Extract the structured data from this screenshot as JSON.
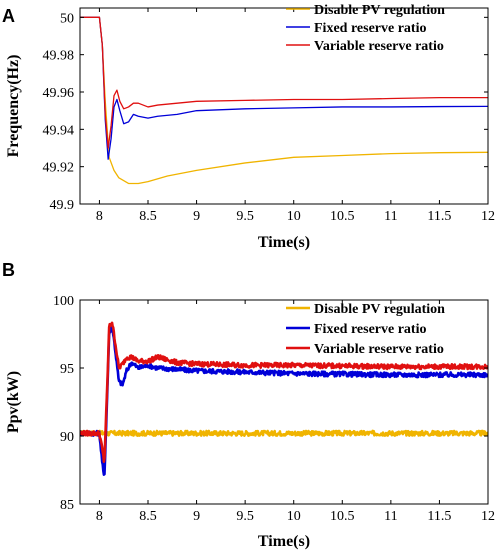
{
  "colors": {
    "disable": "#f0b400",
    "fixed": "#0000d8",
    "variable": "#e01010"
  },
  "chart_data": [
    {
      "panel": "A",
      "type": "line",
      "xlabel": "Time(s)",
      "ylabel": "Frequency(Hz)",
      "xlim": [
        7.8,
        12
      ],
      "ylim": [
        49.9,
        50.005
      ],
      "xticks": [
        "8",
        "8.5",
        "9",
        "9.5",
        "10",
        "10.5",
        "11",
        "11.5",
        "12"
      ],
      "yticks": [
        "49.9",
        "49.92",
        "49.94",
        "49.96",
        "49.98",
        "50"
      ],
      "legend": "top-right",
      "series": [
        {
          "name": "Disable PV regulation",
          "color": "#f0b400",
          "x": [
            7.8,
            8.0,
            8.03,
            8.06,
            8.1,
            8.15,
            8.2,
            8.3,
            8.4,
            8.5,
            8.7,
            9.0,
            9.5,
            10.0,
            10.5,
            11.0,
            11.5,
            12.0
          ],
          "y": [
            50.0,
            50.0,
            49.985,
            49.955,
            49.925,
            49.918,
            49.914,
            49.911,
            49.911,
            49.912,
            49.915,
            49.918,
            49.922,
            49.925,
            49.926,
            49.927,
            49.9275,
            49.9277
          ]
        },
        {
          "name": "Fixed reserve ratio",
          "color": "#0000d8",
          "x": [
            7.8,
            8.0,
            8.03,
            8.06,
            8.09,
            8.12,
            8.15,
            8.18,
            8.21,
            8.25,
            8.3,
            8.35,
            8.4,
            8.5,
            8.6,
            8.8,
            9.0,
            9.5,
            10.0,
            10.5,
            11.0,
            11.5,
            12.0
          ],
          "y": [
            50.0,
            50.0,
            49.985,
            49.945,
            49.924,
            49.935,
            49.952,
            49.956,
            49.95,
            49.943,
            49.944,
            49.948,
            49.947,
            49.946,
            49.947,
            49.948,
            49.95,
            49.951,
            49.9515,
            49.952,
            49.952,
            49.9522,
            49.9523
          ]
        },
        {
          "name": "Variable reserve ratio",
          "color": "#e01010",
          "x": [
            7.8,
            8.0,
            8.03,
            8.06,
            8.09,
            8.12,
            8.15,
            8.18,
            8.21,
            8.25,
            8.3,
            8.35,
            8.4,
            8.5,
            8.6,
            8.8,
            9.0,
            9.5,
            10.0,
            10.5,
            11.0,
            11.5,
            12.0
          ],
          "y": [
            50.0,
            50.0,
            49.985,
            49.948,
            49.93,
            49.942,
            49.958,
            49.961,
            49.955,
            49.951,
            49.952,
            49.954,
            49.954,
            49.952,
            49.953,
            49.954,
            49.955,
            49.9555,
            49.956,
            49.956,
            49.9565,
            49.957,
            49.957
          ]
        }
      ]
    },
    {
      "panel": "B",
      "type": "line",
      "xlabel": "Time(s)",
      "ylabel": "Ppv(kW)",
      "xlim": [
        7.8,
        12
      ],
      "ylim": [
        85,
        100
      ],
      "xticks": [
        "8",
        "8.5",
        "9",
        "9.5",
        "10",
        "10.5",
        "11",
        "11.5",
        "12"
      ],
      "yticks": [
        "85",
        "90",
        "95",
        "100"
      ],
      "legend": "top-right",
      "series": [
        {
          "name": "Disable PV regulation",
          "color": "#f0b400",
          "x": [
            7.8,
            12.0
          ],
          "y": [
            90.2,
            90.2
          ]
        },
        {
          "name": "Fixed reserve ratio",
          "color": "#0000d8",
          "x": [
            7.8,
            8.0,
            8.03,
            8.05,
            8.08,
            8.1,
            8.13,
            8.16,
            8.2,
            8.24,
            8.28,
            8.33,
            8.4,
            8.5,
            8.6,
            8.8,
            9.0,
            9.5,
            10.0,
            11.0,
            12.0
          ],
          "y": [
            90.2,
            90.2,
            88.0,
            86.8,
            93.0,
            97.5,
            98.2,
            96.5,
            94.0,
            93.8,
            94.8,
            95.4,
            95.0,
            95.2,
            95.0,
            94.9,
            94.8,
            94.7,
            94.6,
            94.5,
            94.5
          ]
        },
        {
          "name": "Variable reserve ratio",
          "color": "#e01010",
          "x": [
            7.8,
            8.0,
            8.03,
            8.05,
            8.08,
            8.1,
            8.13,
            8.16,
            8.2,
            8.24,
            8.28,
            8.33,
            8.4,
            8.5,
            8.6,
            8.8,
            9.0,
            9.5,
            10.0,
            11.0,
            12.0
          ],
          "y": [
            90.2,
            90.2,
            89.0,
            88.0,
            93.5,
            98.0,
            98.4,
            97.0,
            95.0,
            95.3,
            95.8,
            95.8,
            95.5,
            95.5,
            95.8,
            95.4,
            95.3,
            95.2,
            95.2,
            95.1,
            95.1
          ]
        }
      ]
    }
  ]
}
